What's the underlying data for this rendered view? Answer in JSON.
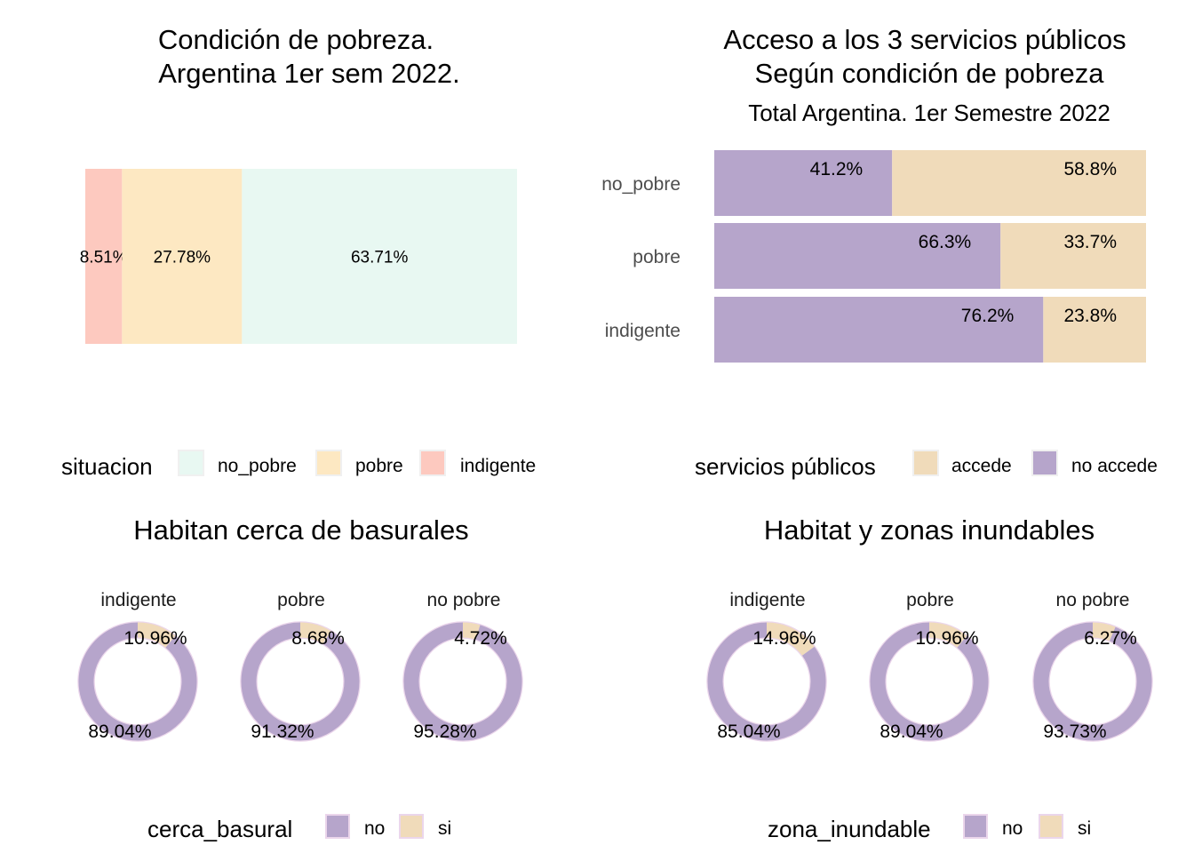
{
  "colors": {
    "no_pobre": "#E8F8F2",
    "pobre": "#FDE8C2",
    "indigente": "#FDC9BF",
    "accede": "#F0DBBA",
    "no_accede": "#B6A5CB",
    "donut_no": "#B6A5CB",
    "donut_si": "#F0DBBA",
    "donut_border": "#EBD6EB",
    "legend_border": "#F0F0F0"
  },
  "chart_data": [
    {
      "id": "pobreza",
      "type": "bar",
      "orientation": "horizontal-stacked",
      "title_lines": [
        "Condición de pobreza.",
        "Argentina 1er sem 2022."
      ],
      "categories": [
        "indigente",
        "pobre",
        "no_pobre"
      ],
      "values": [
        8.51,
        27.78,
        63.71
      ],
      "labels": [
        "8.51%",
        "27.78%",
        "63.71%"
      ],
      "xlim": [
        0,
        100
      ],
      "legend": {
        "title": "situacion",
        "position": "bottom",
        "items": [
          {
            "key": "no_pobre",
            "label": "no_pobre"
          },
          {
            "key": "pobre",
            "label": "pobre"
          },
          {
            "key": "indigente",
            "label": "indigente"
          }
        ]
      }
    },
    {
      "id": "servicios",
      "type": "bar",
      "orientation": "horizontal-stacked",
      "title_lines": [
        "Acceso a los 3 servicios públicos",
        "Según condición de pobreza"
      ],
      "subtitle": "Total Argentina. 1er Semestre 2022",
      "categories": [
        "no_pobre",
        "pobre",
        "indigente"
      ],
      "series": [
        {
          "name": "no accede",
          "key": "no_accede",
          "values": [
            41.2,
            66.3,
            76.2
          ],
          "labels": [
            "41.2%",
            "66.3%",
            "76.2%"
          ]
        },
        {
          "name": "accede",
          "key": "accede",
          "values": [
            58.8,
            33.7,
            23.8
          ],
          "labels": [
            "58.8%",
            "33.7%",
            "23.8%"
          ]
        }
      ],
      "xlim": [
        0,
        100
      ],
      "legend": {
        "title": "servicios públicos",
        "position": "bottom",
        "items": [
          {
            "key": "accede",
            "label": "accede"
          },
          {
            "key": "no_accede",
            "label": "no accede"
          }
        ]
      }
    },
    {
      "id": "basurales",
      "type": "pie",
      "style": "donut",
      "title": "Habitan cerca de basurales",
      "facets": [
        {
          "label": "indigente",
          "si": 10.96,
          "no": 89.04,
          "si_label": "10.96%",
          "no_label": "89.04%"
        },
        {
          "label": "pobre",
          "si": 8.68,
          "no": 91.32,
          "si_label": "8.68%",
          "no_label": "91.32%"
        },
        {
          "label": "no  pobre",
          "si": 4.72,
          "no": 95.28,
          "si_label": "4.72%",
          "no_label": "95.28%"
        }
      ],
      "legend": {
        "title": "cerca_basural",
        "position": "bottom",
        "items": [
          {
            "key": "donut_no",
            "label": "no"
          },
          {
            "key": "donut_si",
            "label": "si"
          }
        ]
      }
    },
    {
      "id": "inundables",
      "type": "pie",
      "style": "donut",
      "title": "Habitat y zonas inundables",
      "facets": [
        {
          "label": "indigente",
          "si": 14.96,
          "no": 85.04,
          "si_label": "14.96%",
          "no_label": "85.04%"
        },
        {
          "label": "pobre",
          "si": 10.96,
          "no": 89.04,
          "si_label": "10.96%",
          "no_label": "89.04%"
        },
        {
          "label": "no  pobre",
          "si": 6.27,
          "no": 93.73,
          "si_label": "6.27%",
          "no_label": "93.73%"
        }
      ],
      "legend": {
        "title": "zona_inundable",
        "position": "bottom",
        "items": [
          {
            "key": "donut_no",
            "label": "no"
          },
          {
            "key": "donut_si",
            "label": "si"
          }
        ]
      }
    }
  ]
}
